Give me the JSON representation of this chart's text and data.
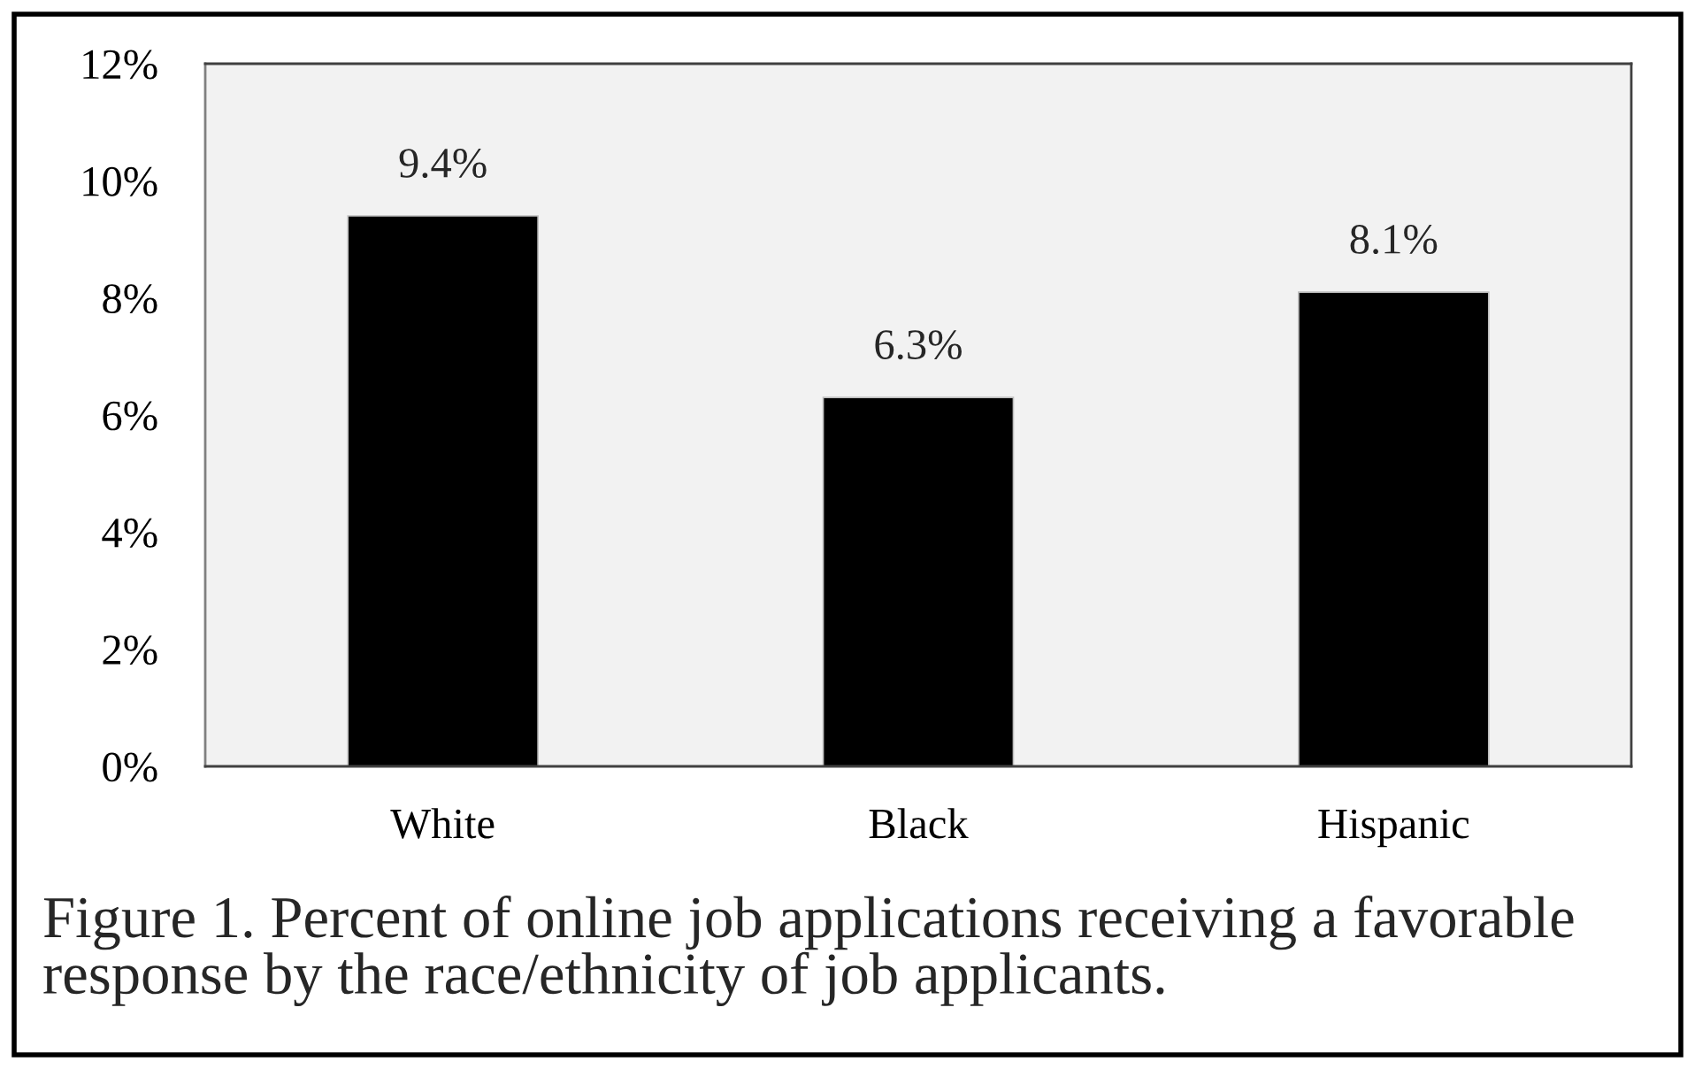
{
  "chart_data": {
    "type": "bar",
    "categories": [
      "White",
      "Black",
      "Hispanic"
    ],
    "values": [
      9.4,
      6.3,
      8.1
    ],
    "value_labels": [
      "9.4%",
      "6.3%",
      "8.1%"
    ],
    "color": "#000000",
    "ylim": [
      0,
      12
    ],
    "yticks": [
      {
        "value": 0,
        "label": "0%"
      },
      {
        "value": 2,
        "label": "2%"
      },
      {
        "value": 4,
        "label": "4%"
      },
      {
        "value": 6,
        "label": "6%"
      },
      {
        "value": 8,
        "label": "8%"
      },
      {
        "value": 10,
        "label": "10%"
      },
      {
        "value": 12,
        "label": "12%"
      }
    ],
    "grid": false,
    "legend": false,
    "annotations": [
      "Figure 1. Percent of online job applications receiving a favorable response by the race/ethnicity of job applicants."
    ]
  }
}
